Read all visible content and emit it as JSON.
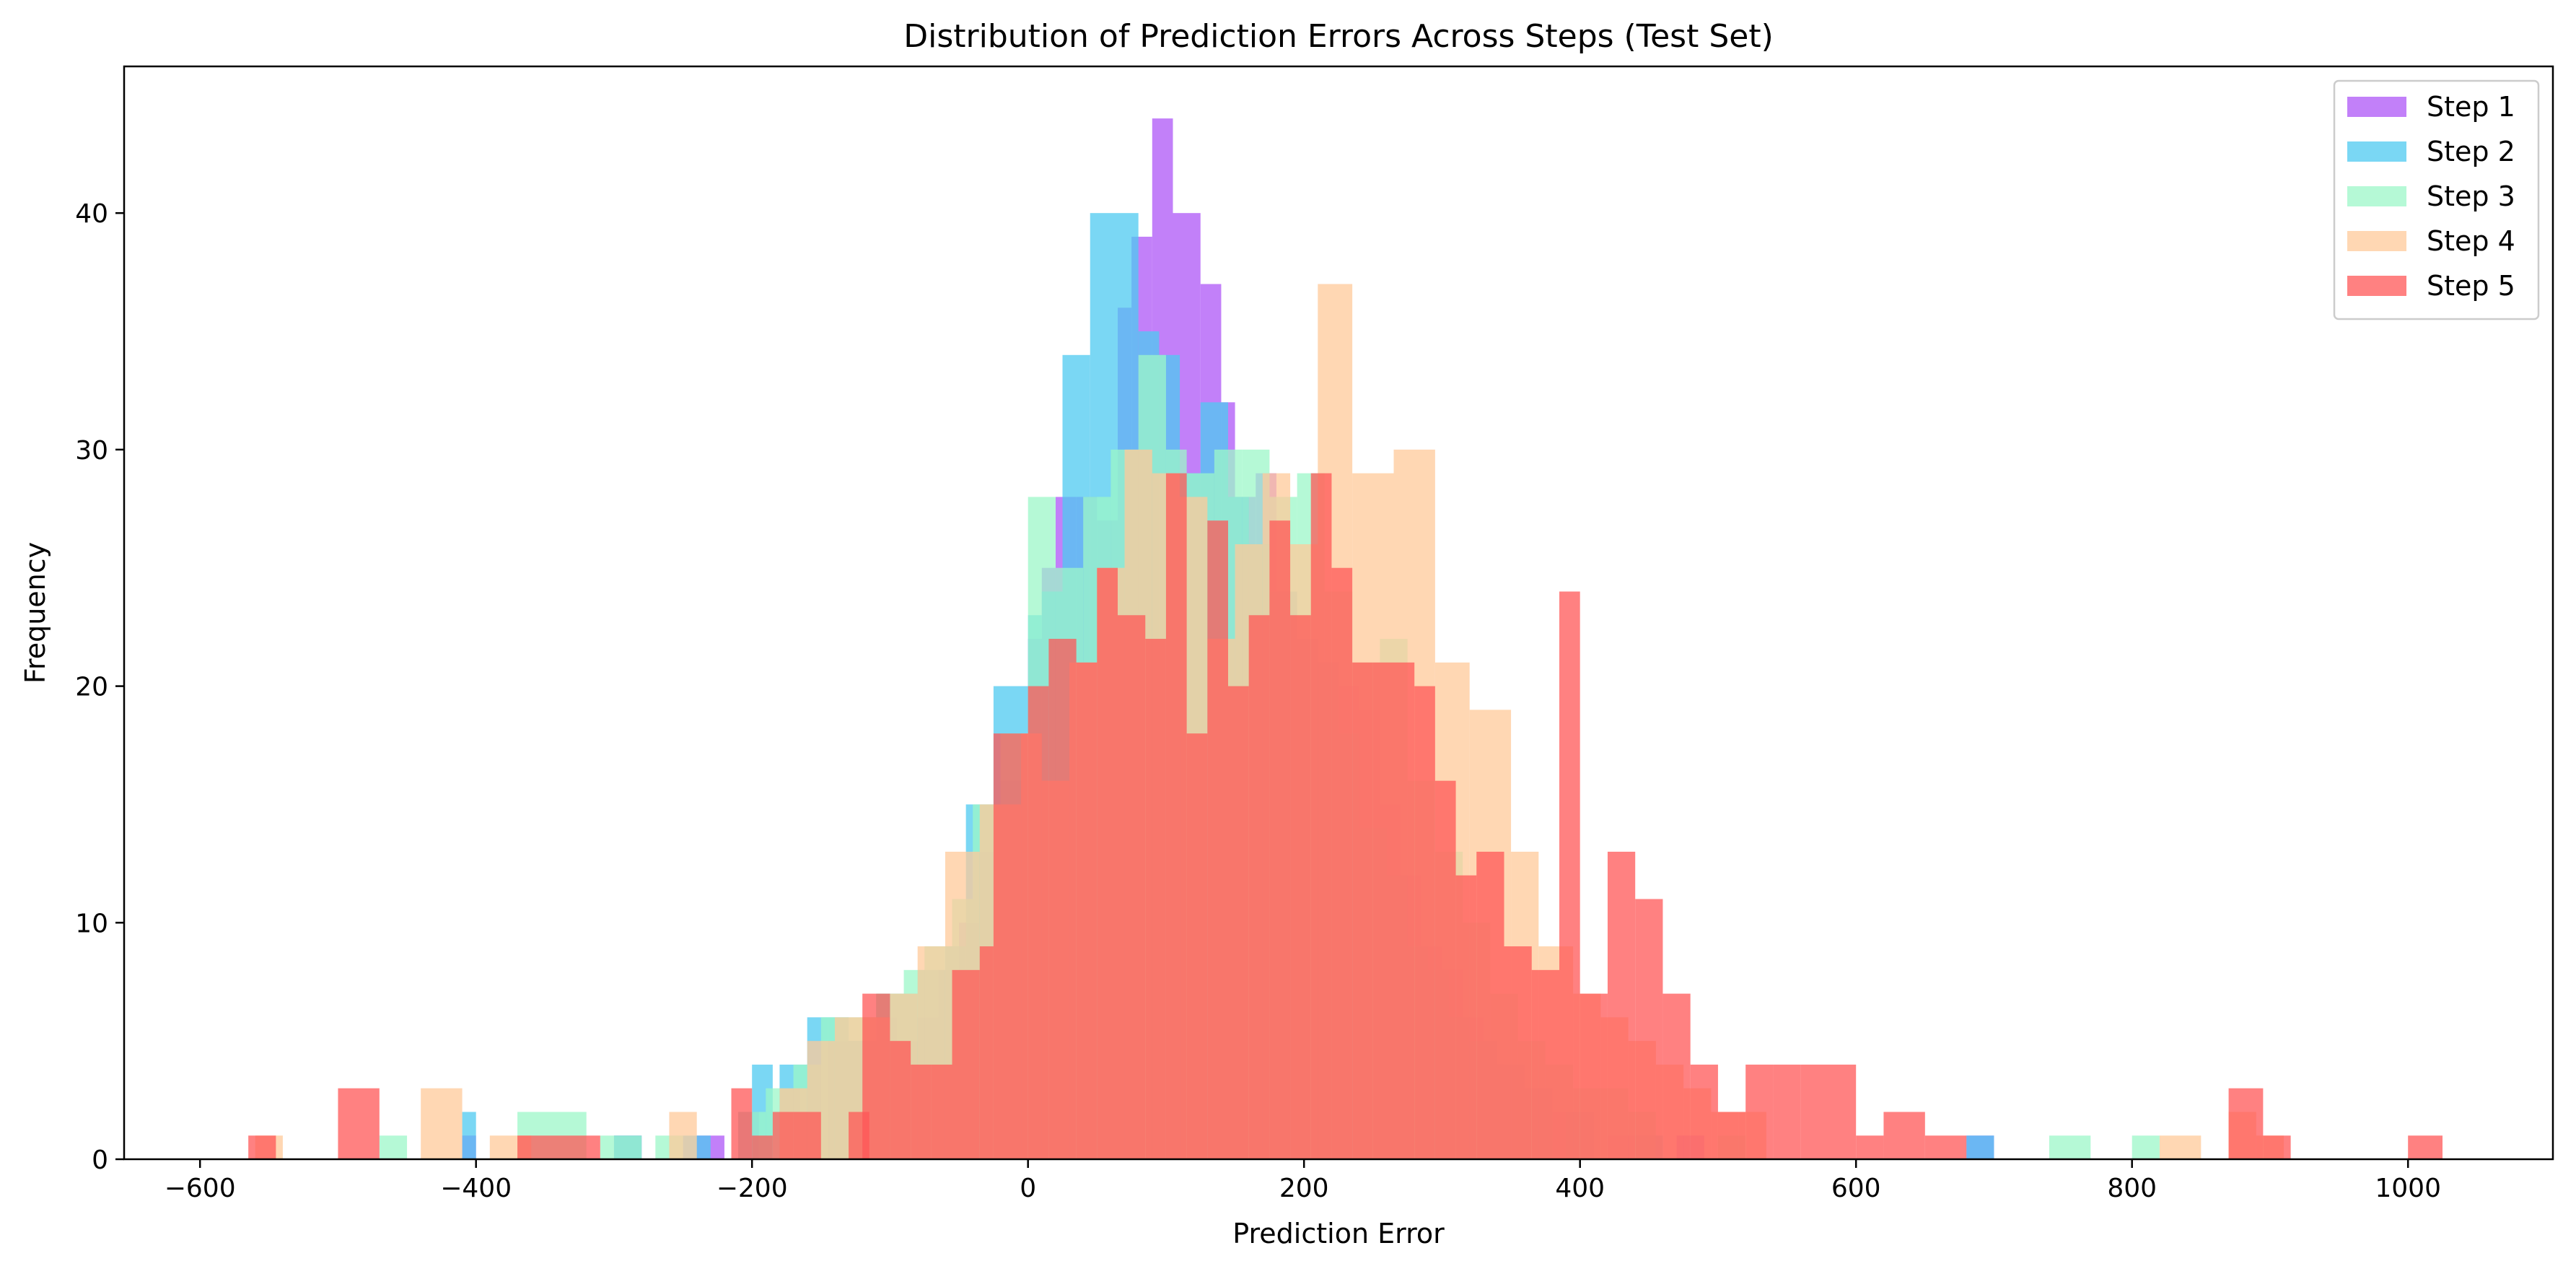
{
  "chart_data": {
    "type": "bar",
    "title": "Distribution of Prediction Errors Across Steps (Test Set)",
    "xlabel": "Prediction Error",
    "ylabel": "Frequency",
    "xlim": [
      -655,
      1105
    ],
    "ylim": [
      0,
      46.2
    ],
    "xticks": [
      -600,
      -400,
      -200,
      0,
      200,
      400,
      600,
      800,
      1000
    ],
    "yticks": [
      0,
      10,
      20,
      30,
      40
    ],
    "grid": false,
    "legend_position": "top-right",
    "bar_opacity": 0.75,
    "series": [
      {
        "name": "Step 1",
        "color": "#ad56f7",
        "bins": [
          [
            -410,
            -400,
            1
          ],
          [
            -300,
            -280,
            1
          ],
          [
            -240,
            -220,
            1
          ],
          [
            -210,
            -195,
            2
          ],
          [
            -180,
            -165,
            3
          ],
          [
            -160,
            -150,
            4
          ],
          [
            -145,
            -130,
            5
          ],
          [
            -130,
            -115,
            5
          ],
          [
            -110,
            -95,
            6
          ],
          [
            -95,
            -80,
            5
          ],
          [
            -80,
            -65,
            6
          ],
          [
            -65,
            -50,
            8
          ],
          [
            -50,
            -35,
            10
          ],
          [
            -35,
            -20,
            13
          ],
          [
            -20,
            0,
            16
          ],
          [
            0,
            10,
            22
          ],
          [
            10,
            20,
            25
          ],
          [
            20,
            35,
            28
          ],
          [
            35,
            50,
            28
          ],
          [
            50,
            65,
            27
          ],
          [
            65,
            75,
            36
          ],
          [
            75,
            90,
            39
          ],
          [
            90,
            105,
            44
          ],
          [
            105,
            125,
            40
          ],
          [
            125,
            140,
            37
          ],
          [
            140,
            150,
            32
          ],
          [
            150,
            165,
            28
          ],
          [
            165,
            180,
            29
          ],
          [
            180,
            195,
            24
          ],
          [
            195,
            210,
            22
          ],
          [
            210,
            225,
            21
          ],
          [
            225,
            240,
            20
          ],
          [
            240,
            255,
            19
          ],
          [
            255,
            270,
            15
          ],
          [
            270,
            285,
            12
          ],
          [
            285,
            300,
            9
          ],
          [
            300,
            315,
            8
          ],
          [
            315,
            330,
            6
          ],
          [
            330,
            345,
            4
          ],
          [
            345,
            360,
            3
          ],
          [
            360,
            375,
            2
          ],
          [
            375,
            395,
            2
          ],
          [
            420,
            440,
            1
          ],
          [
            470,
            490,
            1
          ],
          [
            680,
            700,
            1
          ]
        ]
      },
      {
        "name": "Step 2",
        "color": "#4dc9f0",
        "bins": [
          [
            -410,
            -400,
            2
          ],
          [
            -300,
            -280,
            1
          ],
          [
            -250,
            -230,
            1
          ],
          [
            -200,
            -185,
            4
          ],
          [
            -180,
            -160,
            4
          ],
          [
            -160,
            -145,
            6
          ],
          [
            -145,
            -130,
            6
          ],
          [
            -130,
            -110,
            5
          ],
          [
            -110,
            -95,
            7
          ],
          [
            -95,
            -80,
            7
          ],
          [
            -80,
            -60,
            8
          ],
          [
            -60,
            -45,
            9
          ],
          [
            -45,
            -25,
            15
          ],
          [
            -25,
            0,
            20
          ],
          [
            0,
            10,
            23
          ],
          [
            10,
            25,
            24
          ],
          [
            25,
            45,
            34
          ],
          [
            45,
            65,
            40
          ],
          [
            65,
            80,
            40
          ],
          [
            80,
            95,
            35
          ],
          [
            95,
            110,
            34
          ],
          [
            110,
            125,
            29
          ],
          [
            125,
            145,
            32
          ],
          [
            145,
            160,
            28
          ],
          [
            160,
            175,
            26
          ],
          [
            175,
            195,
            24
          ],
          [
            195,
            210,
            22
          ],
          [
            210,
            225,
            21
          ],
          [
            225,
            240,
            18
          ],
          [
            240,
            260,
            14
          ],
          [
            260,
            275,
            12
          ],
          [
            275,
            290,
            9
          ],
          [
            290,
            305,
            8
          ],
          [
            305,
            320,
            6
          ],
          [
            320,
            340,
            5
          ],
          [
            340,
            360,
            4
          ],
          [
            360,
            380,
            3
          ],
          [
            390,
            410,
            2
          ],
          [
            440,
            460,
            1
          ],
          [
            680,
            700,
            1
          ]
        ]
      },
      {
        "name": "Step 3",
        "color": "#9cf7c8",
        "bins": [
          [
            -470,
            -450,
            1
          ],
          [
            -370,
            -320,
            2
          ],
          [
            -310,
            -280,
            1
          ],
          [
            -270,
            -250,
            1
          ],
          [
            -210,
            -190,
            2
          ],
          [
            -190,
            -170,
            3
          ],
          [
            -170,
            -150,
            4
          ],
          [
            -150,
            -130,
            6
          ],
          [
            -130,
            -110,
            6
          ],
          [
            -110,
            -90,
            7
          ],
          [
            -90,
            -75,
            8
          ],
          [
            -75,
            -55,
            9
          ],
          [
            -55,
            -40,
            11
          ],
          [
            -40,
            -20,
            15
          ],
          [
            -20,
            0,
            18
          ],
          [
            0,
            20,
            28
          ],
          [
            20,
            40,
            25
          ],
          [
            40,
            60,
            28
          ],
          [
            60,
            80,
            30
          ],
          [
            80,
            100,
            34
          ],
          [
            100,
            115,
            30
          ],
          [
            115,
            135,
            29
          ],
          [
            135,
            155,
            30
          ],
          [
            155,
            175,
            30
          ],
          [
            175,
            195,
            28
          ],
          [
            195,
            215,
            29
          ],
          [
            215,
            235,
            24
          ],
          [
            235,
            255,
            21
          ],
          [
            255,
            275,
            22
          ],
          [
            275,
            295,
            16
          ],
          [
            295,
            315,
            13
          ],
          [
            315,
            335,
            10
          ],
          [
            335,
            355,
            7
          ],
          [
            355,
            375,
            5
          ],
          [
            375,
            395,
            4
          ],
          [
            395,
            415,
            3
          ],
          [
            415,
            435,
            3
          ],
          [
            435,
            455,
            2
          ],
          [
            500,
            520,
            1
          ],
          [
            740,
            770,
            1
          ],
          [
            800,
            820,
            1
          ]
        ]
      },
      {
        "name": "Step 4",
        "color": "#ffc99a",
        "bins": [
          [
            -560,
            -540,
            1
          ],
          [
            -440,
            -410,
            3
          ],
          [
            -390,
            -360,
            1
          ],
          [
            -260,
            -240,
            2
          ],
          [
            -180,
            -160,
            3
          ],
          [
            -160,
            -140,
            5
          ],
          [
            -140,
            -120,
            6
          ],
          [
            -120,
            -100,
            6
          ],
          [
            -100,
            -80,
            7
          ],
          [
            -80,
            -60,
            9
          ],
          [
            -60,
            -35,
            13
          ],
          [
            -35,
            -5,
            15
          ],
          [
            -5,
            10,
            18
          ],
          [
            10,
            30,
            16
          ],
          [
            30,
            50,
            21
          ],
          [
            50,
            70,
            25
          ],
          [
            70,
            90,
            30
          ],
          [
            90,
            110,
            29
          ],
          [
            110,
            130,
            28
          ],
          [
            130,
            150,
            22
          ],
          [
            150,
            170,
            26
          ],
          [
            170,
            190,
            29
          ],
          [
            190,
            210,
            26
          ],
          [
            210,
            235,
            37
          ],
          [
            235,
            265,
            29
          ],
          [
            265,
            295,
            30
          ],
          [
            295,
            320,
            21
          ],
          [
            320,
            350,
            19
          ],
          [
            350,
            370,
            13
          ],
          [
            370,
            395,
            9
          ],
          [
            395,
            415,
            7
          ],
          [
            415,
            435,
            6
          ],
          [
            435,
            455,
            5
          ],
          [
            455,
            475,
            4
          ],
          [
            475,
            495,
            3
          ],
          [
            495,
            515,
            2
          ],
          [
            515,
            535,
            2
          ],
          [
            820,
            850,
            1
          ],
          [
            870,
            890,
            2
          ],
          [
            890,
            910,
            1
          ]
        ]
      },
      {
        "name": "Step 5",
        "color": "#ff5757",
        "bins": [
          [
            -565,
            -545,
            1
          ],
          [
            -500,
            -470,
            3
          ],
          [
            -370,
            -310,
            1
          ],
          [
            -215,
            -200,
            3
          ],
          [
            -200,
            -185,
            1
          ],
          [
            -185,
            -170,
            2
          ],
          [
            -170,
            -150,
            2
          ],
          [
            -130,
            -115,
            2
          ],
          [
            -120,
            -100,
            7
          ],
          [
            -100,
            -85,
            5
          ],
          [
            -85,
            -70,
            4
          ],
          [
            -70,
            -55,
            4
          ],
          [
            -55,
            -35,
            8
          ],
          [
            -35,
            -25,
            9
          ],
          [
            -25,
            0,
            18
          ],
          [
            0,
            15,
            20
          ],
          [
            15,
            35,
            22
          ],
          [
            35,
            50,
            21
          ],
          [
            50,
            65,
            25
          ],
          [
            65,
            85,
            23
          ],
          [
            85,
            100,
            22
          ],
          [
            100,
            115,
            29
          ],
          [
            115,
            130,
            18
          ],
          [
            130,
            145,
            27
          ],
          [
            145,
            160,
            20
          ],
          [
            160,
            175,
            23
          ],
          [
            175,
            190,
            27
          ],
          [
            190,
            205,
            23
          ],
          [
            205,
            220,
            29
          ],
          [
            220,
            235,
            25
          ],
          [
            235,
            250,
            21
          ],
          [
            250,
            265,
            21
          ],
          [
            265,
            280,
            21
          ],
          [
            280,
            295,
            20
          ],
          [
            295,
            310,
            16
          ],
          [
            310,
            325,
            12
          ],
          [
            325,
            345,
            13
          ],
          [
            345,
            365,
            9
          ],
          [
            365,
            385,
            8
          ],
          [
            385,
            400,
            24
          ],
          [
            400,
            420,
            7
          ],
          [
            420,
            440,
            13
          ],
          [
            440,
            460,
            11
          ],
          [
            460,
            480,
            7
          ],
          [
            480,
            500,
            4
          ],
          [
            500,
            520,
            2
          ],
          [
            520,
            540,
            4
          ],
          [
            540,
            560,
            4
          ],
          [
            560,
            600,
            4
          ],
          [
            600,
            620,
            1
          ],
          [
            620,
            650,
            2
          ],
          [
            650,
            680,
            1
          ],
          [
            870,
            895,
            3
          ],
          [
            895,
            915,
            1
          ],
          [
            1000,
            1025,
            1
          ]
        ]
      }
    ]
  }
}
